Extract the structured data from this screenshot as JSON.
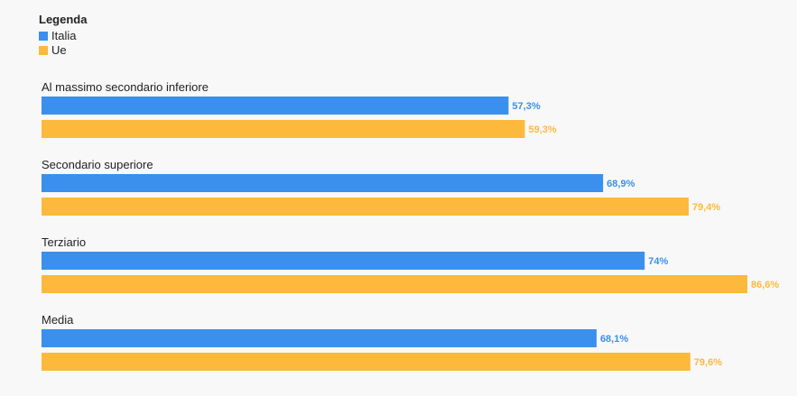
{
  "legend": {
    "title": "Legenda",
    "items": [
      {
        "label": "Italia",
        "color": "#3a90ec"
      },
      {
        "label": "Ue",
        "color": "#fdb93c"
      }
    ]
  },
  "chart_data": {
    "type": "bar",
    "orientation": "horizontal",
    "categories": [
      "Al massimo secondario inferiore",
      "Secondario superiore",
      "Terziario",
      "Media"
    ],
    "series": [
      {
        "name": "Italia",
        "color": "#3a90ec",
        "values": [
          57.3,
          68.9,
          74,
          68.1
        ],
        "labels": [
          "57,3%",
          "68,9%",
          "74%",
          "68,1%"
        ]
      },
      {
        "name": "Ue",
        "color": "#fdb93c",
        "values": [
          59.3,
          79.4,
          86.6,
          79.6
        ],
        "labels": [
          "59,3%",
          "79,4%",
          "86,6%",
          "79,6%"
        ]
      }
    ],
    "xlim": [
      0,
      86.6
    ],
    "grid": false,
    "legend_position": "top-left"
  }
}
